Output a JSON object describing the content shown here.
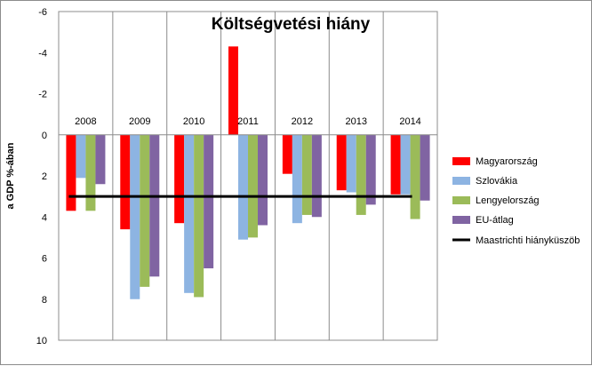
{
  "chart_data": {
    "type": "bar",
    "title": "Költségvetési hiány",
    "ylabel": "a GDP %-ában",
    "xlabel": "",
    "ylim": [
      -6,
      10
    ],
    "y_inverted": true,
    "yticks": [
      -6,
      -4,
      -2,
      0,
      2,
      4,
      6,
      8,
      10
    ],
    "categories": [
      "2008",
      "2009",
      "2010",
      "2011",
      "2012",
      "2013",
      "2014"
    ],
    "series": [
      {
        "name": "Magyarország",
        "color": "#ff0000",
        "values": [
          3.7,
          4.6,
          4.3,
          -4.3,
          1.9,
          2.7,
          2.9
        ]
      },
      {
        "name": "Szlovákia",
        "color": "#8db4e2",
        "values": [
          2.1,
          8.0,
          7.7,
          5.1,
          4.3,
          2.8,
          2.9
        ]
      },
      {
        "name": "Lengyelország",
        "color": "#9bbb59",
        "values": [
          3.7,
          7.4,
          7.9,
          5.0,
          3.9,
          3.9,
          4.1
        ]
      },
      {
        "name": "EU-átlag",
        "color": "#8064a2",
        "values": [
          2.4,
          6.9,
          6.5,
          4.4,
          4.0,
          3.4,
          3.2
        ]
      }
    ],
    "reference_line": {
      "name": "Maastrichti hiányküszöb",
      "value": 3,
      "color": "#000000"
    },
    "grid": {
      "horizontal": false,
      "vertical": true
    },
    "legend_position": "right"
  }
}
